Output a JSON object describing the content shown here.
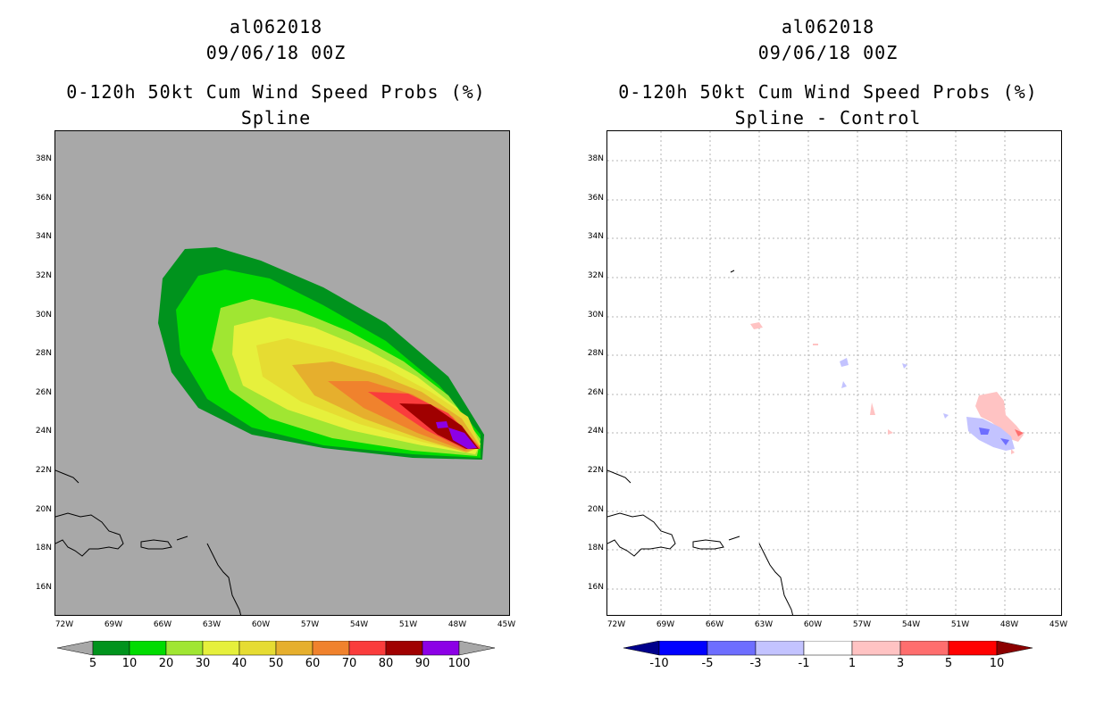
{
  "left": {
    "title_line1": "al062018",
    "title_line2": "09/06/18 00Z",
    "title_line3": "0-120h 50kt Cum Wind Speed Probs (%)",
    "title_line4": "Spline",
    "colorbar": {
      "colors": [
        "#00931d",
        "#00dc00",
        "#a0e632",
        "#e6f03c",
        "#e6dc32",
        "#e6af2d",
        "#f0822d",
        "#fa3c3c",
        "#a00000",
        "#8c00e6"
      ],
      "under_color": "#a8a8a8",
      "over_color": "#a8a8a8",
      "labels": [
        "5",
        "10",
        "20",
        "30",
        "40",
        "50",
        "60",
        "70",
        "80",
        "90",
        "100"
      ]
    }
  },
  "right": {
    "title_line1": "al062018",
    "title_line2": "09/06/18 00Z",
    "title_line3": "0-120h 50kt Cum Wind Speed Probs (%)",
    "title_line4": "Spline - Control",
    "colorbar": {
      "colors": [
        "#0000ff",
        "#6e6eff",
        "#c3c3ff",
        "#ffffff",
        "#ffc3c3",
        "#ff6e6e",
        "#ff0000"
      ],
      "under_color": "#00008c",
      "over_color": "#8c0000",
      "labels": [
        "-10",
        "-5",
        "-3",
        "-1",
        "1",
        "3",
        "5",
        "10"
      ]
    }
  },
  "axes": {
    "lat_labels": [
      "38N",
      "36N",
      "34N",
      "32N",
      "30N",
      "28N",
      "26N",
      "24N",
      "22N",
      "20N",
      "18N",
      "16N"
    ],
    "lon_labels": [
      "72W",
      "69W",
      "66W",
      "63W",
      "60W",
      "57W",
      "54W",
      "51W",
      "48W",
      "45W"
    ]
  },
  "background_color": "#a8a8a8"
}
